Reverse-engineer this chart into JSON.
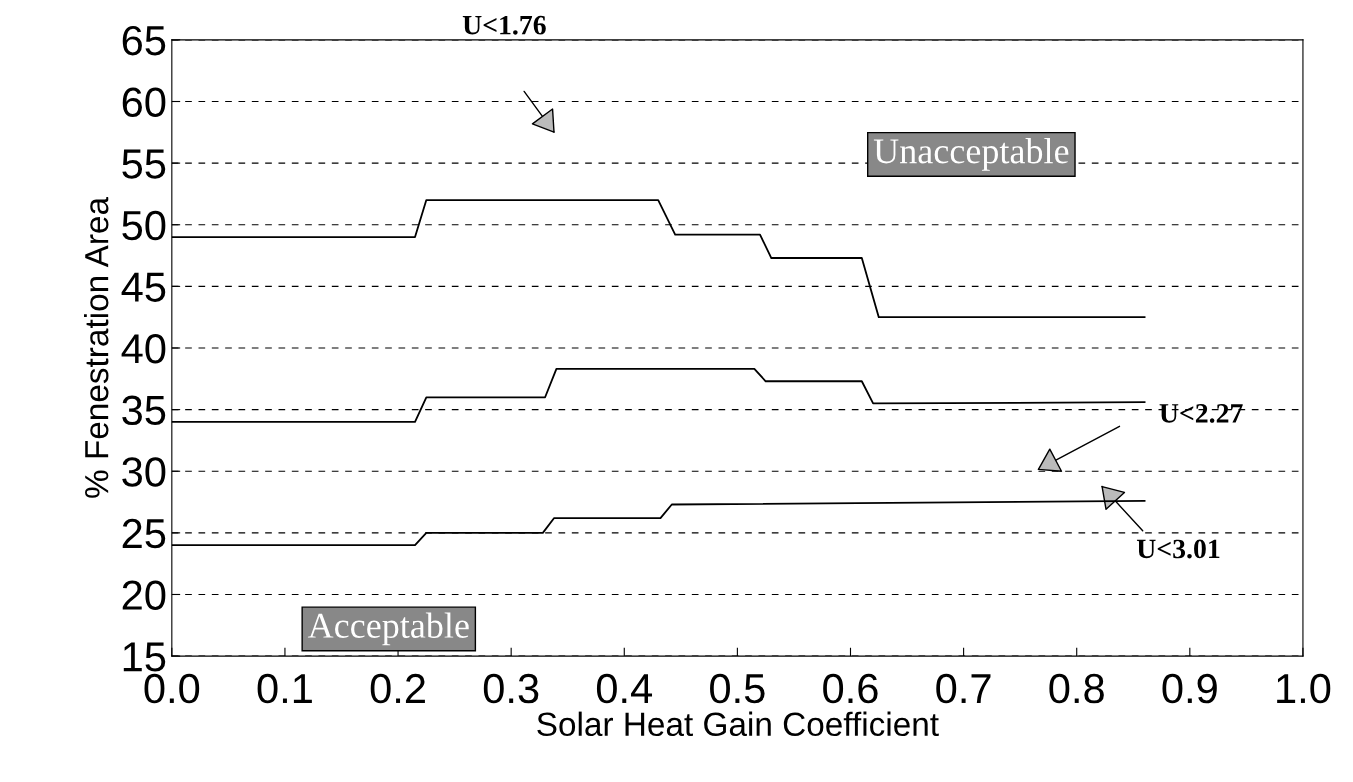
{
  "chart_data": {
    "type": "line",
    "xlabel": "Solar Heat Gain Coefficient",
    "ylabel": "% Fenestration Area",
    "xlim": [
      0,
      1.0
    ],
    "ylim": [
      15,
      65
    ],
    "xticks": [
      {
        "value": 0,
        "label": "0.0"
      },
      0.1,
      0.2,
      0.3,
      0.4,
      0.5,
      0.6,
      0.7,
      0.8,
      0.9,
      {
        "value": 1.0,
        "label": "1.0"
      }
    ],
    "yticks": [
      15,
      20,
      25,
      30,
      35,
      40,
      45,
      50,
      55,
      60,
      65
    ],
    "grid": "y",
    "line_style": "solid",
    "marker": "none",
    "series": [
      {
        "color": "#000000",
        "x": [
          0,
          0.215,
          0.225,
          0.43,
          0.445,
          0.52,
          0.53,
          0.61,
          0.625,
          0.86
        ],
        "values": [
          49,
          49,
          52,
          52,
          49.2,
          49.2,
          47.3,
          47.3,
          42.5,
          42.5
        ]
      },
      {
        "color": "#000000",
        "x": [
          0,
          0.215,
          0.225,
          0.33,
          0.34,
          0.515,
          0.525,
          0.61,
          0.62,
          0.86
        ],
        "values": [
          34,
          34,
          36,
          36,
          38.3,
          38.3,
          37.3,
          37.3,
          35.5,
          35.6
        ]
      },
      {
        "color": "#000000",
        "x": [
          0,
          0.215,
          0.225,
          0.328,
          0.338,
          0.432,
          0.442,
          0.86
        ],
        "values": [
          24,
          24,
          25,
          25,
          26.2,
          26.2,
          27.3,
          27.6
        ]
      }
    ],
    "annotations": [
      "U<1.76",
      "U<2.27",
      "U<3.01",
      "Unacceptable",
      "Acceptable"
    ]
  }
}
